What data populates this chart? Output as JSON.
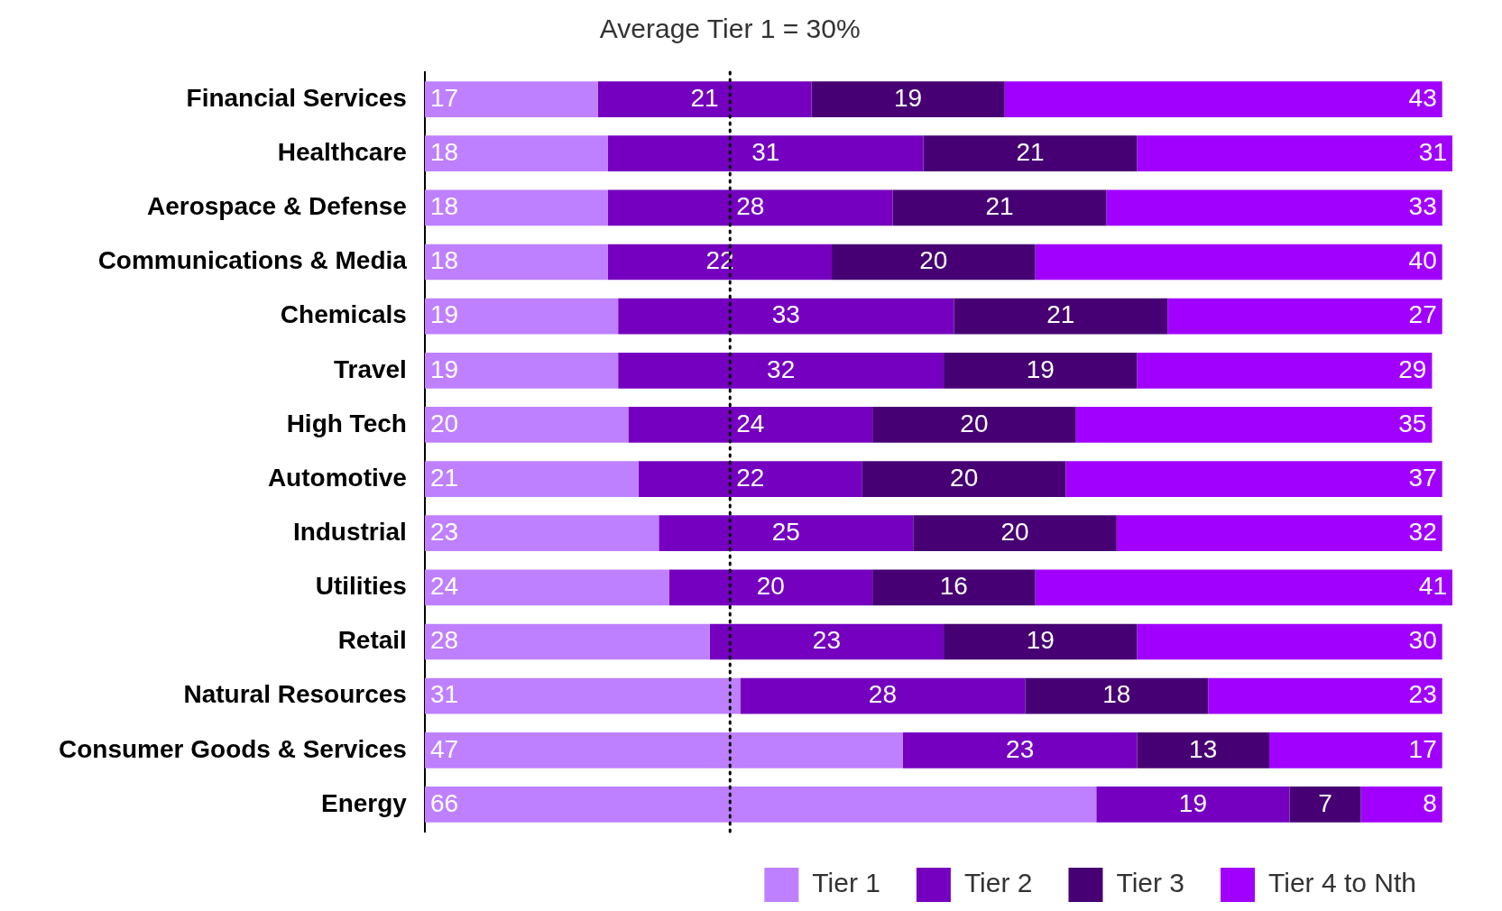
{
  "chart_data": {
    "type": "bar",
    "orientation": "horizontal",
    "stacked": true,
    "data_labels": true,
    "legend": "bottom right",
    "categories": [
      "Financial Services",
      "Healthcare",
      "Aerospace & Defense",
      "Communications & Media",
      "Chemicals",
      "Travel",
      "High Tech",
      "Automotive",
      "Industrial",
      "Utilities",
      "Retail",
      "Natural Resources",
      "Consumer Goods & Services",
      "Energy"
    ],
    "series": [
      {
        "name": "Tier 1",
        "color": "#bf80ff",
        "values": [
          17,
          18,
          18,
          18,
          19,
          19,
          20,
          21,
          23,
          24,
          28,
          31,
          47,
          66
        ]
      },
      {
        "name": "Tier 2",
        "color": "#7500c0",
        "values": [
          21,
          31,
          28,
          22,
          33,
          32,
          24,
          22,
          25,
          20,
          23,
          28,
          23,
          19
        ]
      },
      {
        "name": "Tier 3",
        "color": "#460073",
        "values": [
          19,
          21,
          21,
          20,
          21,
          19,
          20,
          20,
          20,
          16,
          19,
          18,
          13,
          7
        ]
      },
      {
        "name": "Tier 4 to Nth",
        "color": "#a100ff",
        "values": [
          43,
          31,
          33,
          40,
          27,
          29,
          35,
          37,
          32,
          41,
          30,
          23,
          17,
          8
        ]
      }
    ],
    "ref_lines": [
      {
        "axis": "x",
        "value": 30,
        "label": "Average Tier 1 = 30%",
        "color": "#000000",
        "line_style": "dotted"
      }
    ]
  }
}
